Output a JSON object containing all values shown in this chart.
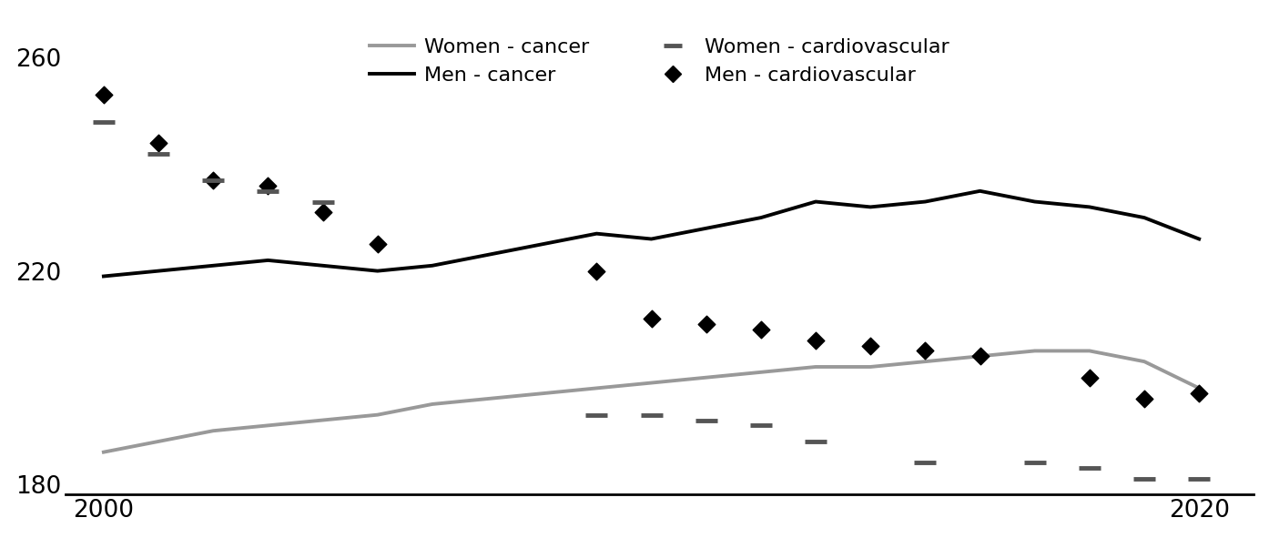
{
  "years": [
    2000,
    2001,
    2002,
    2003,
    2004,
    2005,
    2006,
    2007,
    2008,
    2009,
    2010,
    2011,
    2012,
    2013,
    2014,
    2015,
    2016,
    2017,
    2018,
    2019,
    2020
  ],
  "men_cancer": [
    219,
    220,
    221,
    222,
    221,
    220,
    221,
    223,
    225,
    227,
    226,
    228,
    230,
    233,
    232,
    233,
    235,
    233,
    232,
    230,
    226
  ],
  "women_cancer": [
    186,
    188,
    190,
    191,
    192,
    193,
    195,
    196,
    197,
    198,
    199,
    200,
    201,
    202,
    202,
    203,
    204,
    205,
    205,
    203,
    198
  ],
  "men_cardio_years": [
    2000,
    2001,
    2002,
    2003,
    2004,
    2005,
    2009,
    2010,
    2011,
    2012,
    2013,
    2014,
    2015,
    2016,
    2018,
    2019,
    2020
  ],
  "men_cardio": [
    253,
    244,
    237,
    236,
    231,
    225,
    220,
    211,
    210,
    209,
    207,
    206,
    205,
    204,
    200,
    196,
    197
  ],
  "women_cardio_years": [
    2000,
    2001,
    2002,
    2003,
    2004,
    2009,
    2010,
    2011,
    2012,
    2013,
    2015,
    2017,
    2018,
    2019,
    2020
  ],
  "women_cardio": [
    248,
    242,
    237,
    235,
    233,
    193,
    193,
    192,
    191,
    188,
    184,
    184,
    183,
    181,
    181
  ],
  "ylim": [
    178,
    268
  ],
  "yticks": [
    180,
    220,
    260
  ],
  "xticks": [
    2000,
    2020
  ],
  "men_cancer_color": "#000000",
  "women_cancer_color": "#999999",
  "men_cardio_color": "#000000",
  "women_cardio_color": "#555555",
  "background_color": "#ffffff"
}
